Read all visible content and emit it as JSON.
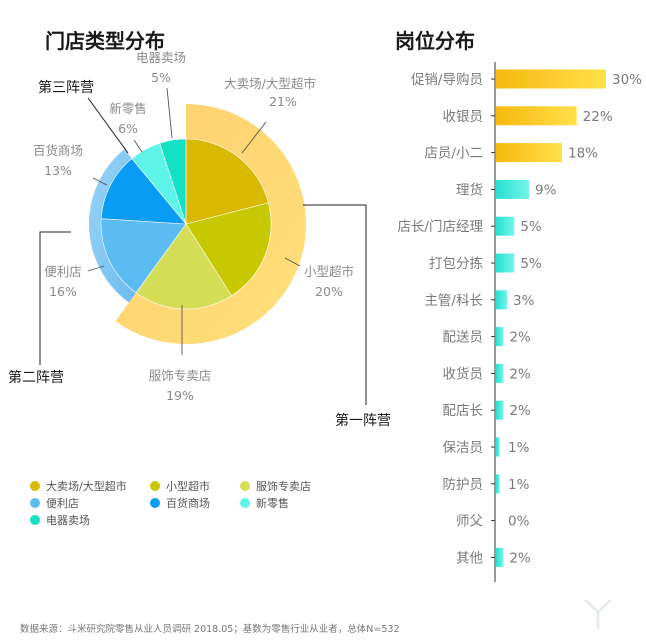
{
  "chart_data": [
    {
      "type": "pie",
      "title": "门店类型分布",
      "series": [
        {
          "name": "大卖场/大型超市",
          "value": 21,
          "label": "21%",
          "color": "#e9c400"
        },
        {
          "name": "小型超市",
          "value": 20,
          "label": "20%",
          "color": "#cfd000"
        },
        {
          "name": "服饰专卖店",
          "value": 19,
          "label": "19%",
          "color": "#d9e25a"
        },
        {
          "name": "便利店",
          "value": 16,
          "label": "16%",
          "color": "#5bbcf3"
        },
        {
          "name": "百货商场",
          "value": 13,
          "label": "13%",
          "color": "#0a9cf5"
        },
        {
          "name": "新零售",
          "value": 6,
          "label": "6%",
          "color": "#5ff4ea"
        },
        {
          "name": "电器卖场",
          "value": 5,
          "label": "5%",
          "color": "#14e0c6"
        }
      ],
      "groups": [
        {
          "name": "第一阵营",
          "members": [
            "大卖场/大型超市",
            "小型超市",
            "服饰专卖店"
          ],
          "color": "#ffd466"
        },
        {
          "name": "第二阵营",
          "members": [
            "便利店",
            "百货商场"
          ],
          "color": "#85c8f4"
        },
        {
          "name": "第三阵营",
          "members": [
            "新零售",
            "电器卖场"
          ],
          "color": "#9ff3ea"
        }
      ],
      "legend": {
        "position": "bottom-left"
      }
    },
    {
      "type": "bar",
      "orientation": "horizontal",
      "title": "岗位分布",
      "categories": [
        "促销/导购员",
        "收银员",
        "店员/小二",
        "理货",
        "店长/门店经理",
        "打包分拣",
        "主管/科长",
        "配送员",
        "收货员",
        "配店长",
        "保洁员",
        "防护员",
        "师父",
        "其他"
      ],
      "values": [
        30,
        22,
        18,
        9,
        5,
        5,
        3,
        2,
        2,
        2,
        1,
        1,
        0,
        2
      ],
      "value_labels": [
        "30%",
        "22%",
        "18%",
        "9%",
        "5%",
        "5%",
        "3%",
        "2%",
        "2%",
        "2%",
        "1%",
        "1%",
        "0%",
        "2%"
      ],
      "xlim": [
        0,
        30
      ],
      "colors": {
        "high": "#f7be12",
        "low": "#2fe4d6"
      }
    }
  ],
  "source": "数据来源：斗米研究院零售从业人员调研 2018.05；基数为零售行业从业者，总体N=532"
}
